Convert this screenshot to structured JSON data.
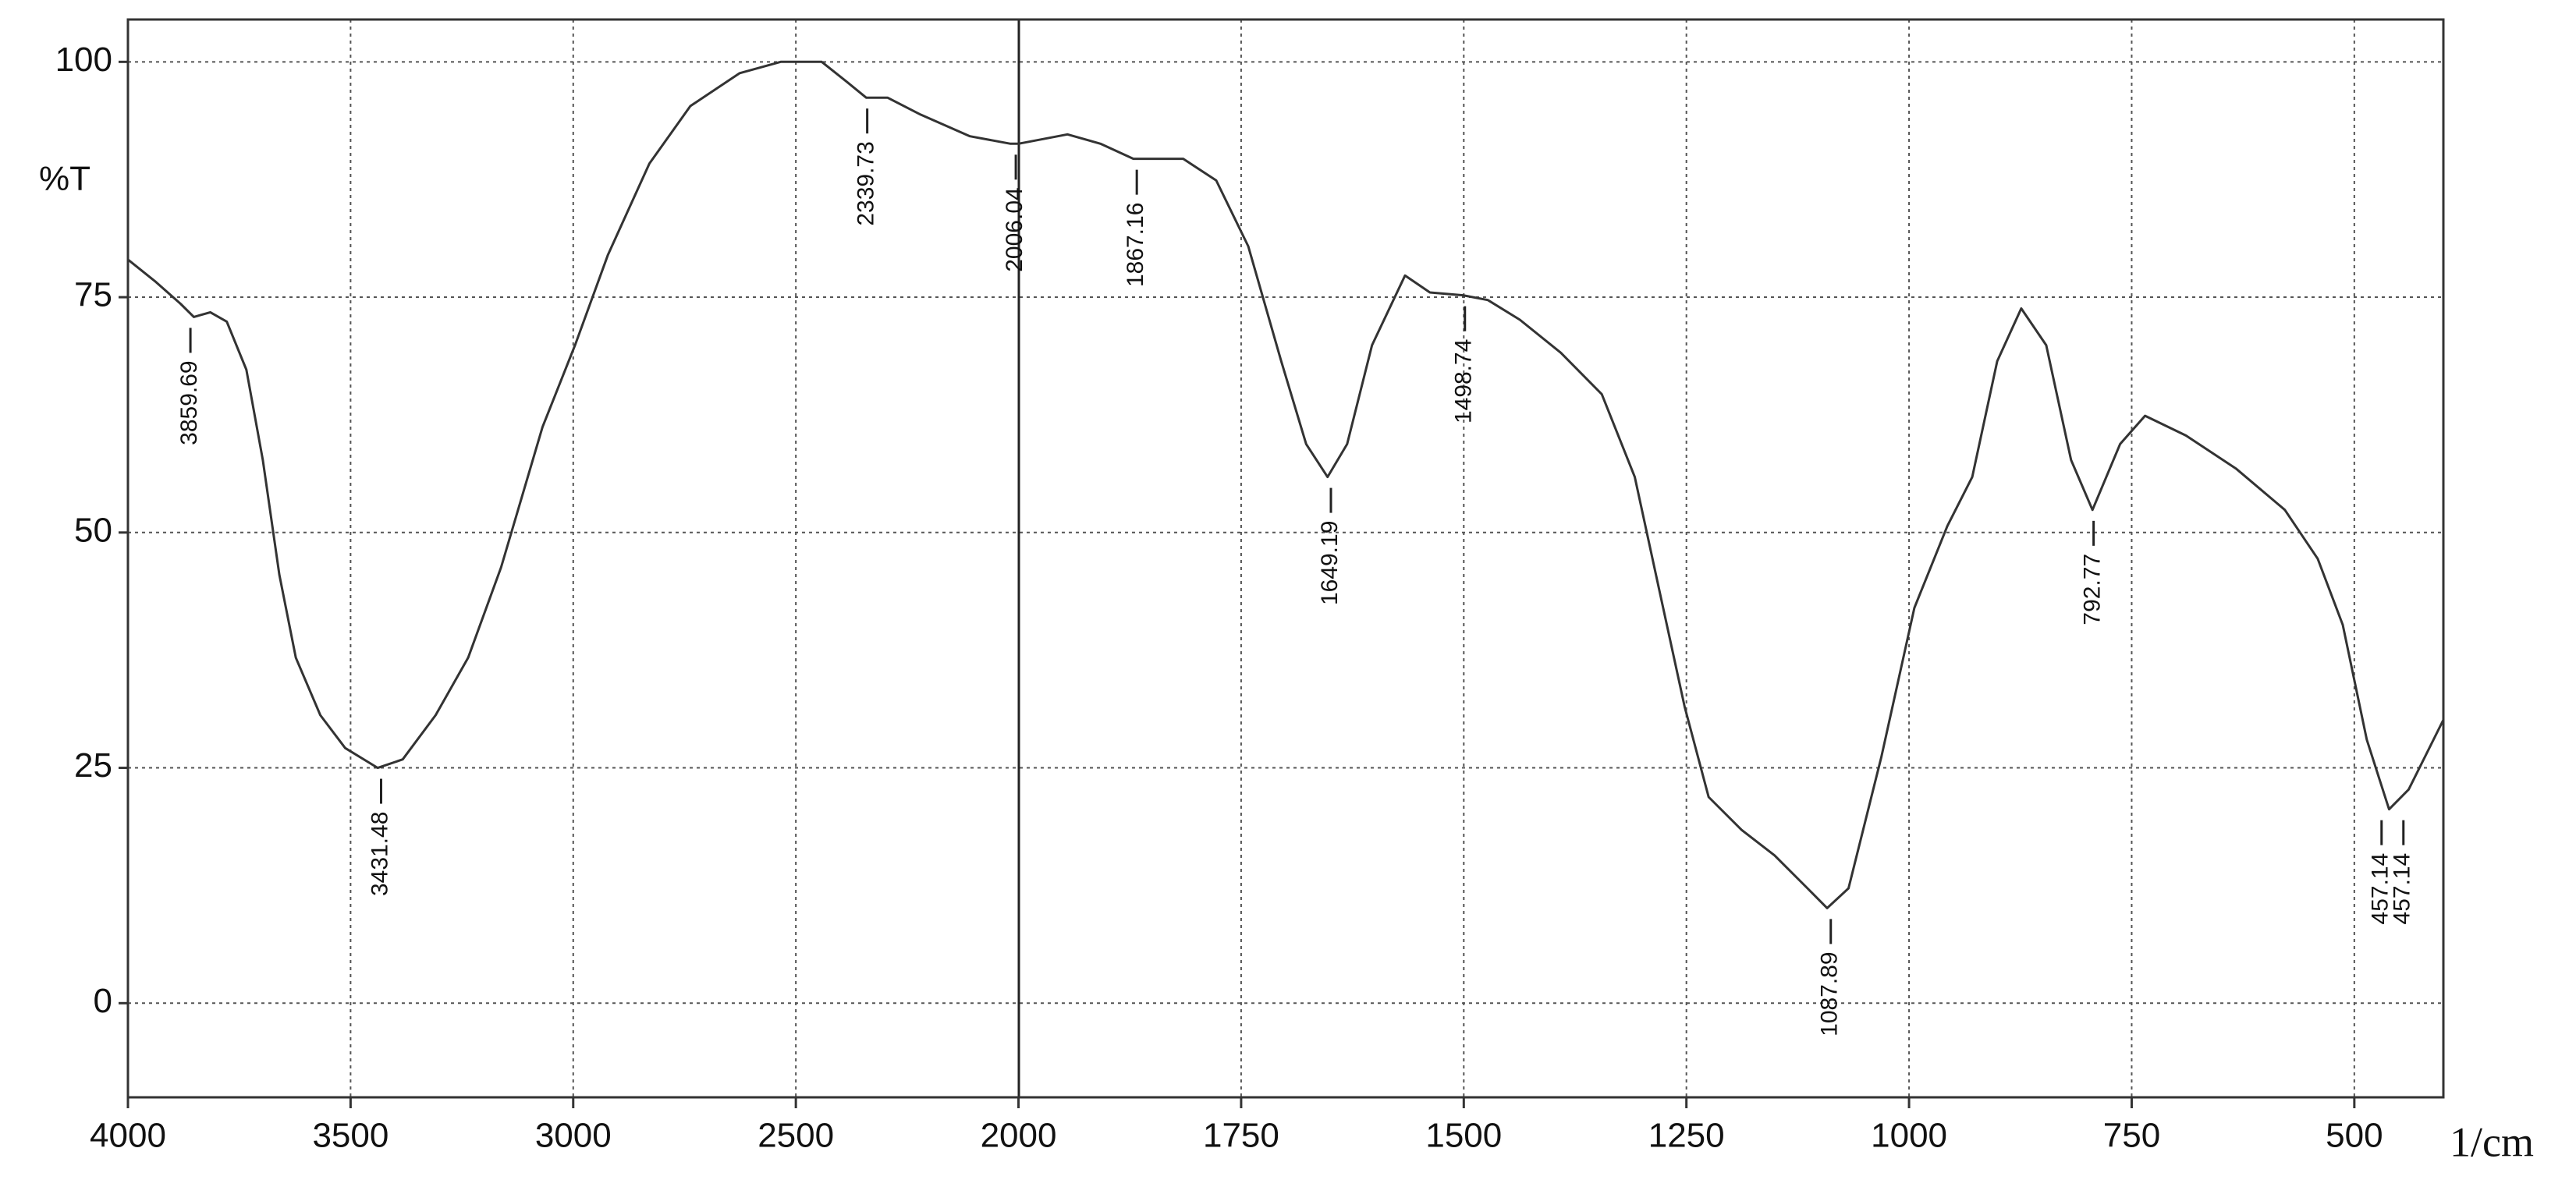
{
  "chart_data": {
    "type": "line",
    "y_label": "%T",
    "x_label": "1/cm",
    "xlim": [
      4000,
      400
    ],
    "ylim": [
      -10,
      104.5
    ],
    "xticks": [
      4000,
      3500,
      3000,
      2500,
      2000,
      1750,
      1500,
      1250,
      1000,
      750,
      500
    ],
    "yticks": [
      0,
      25,
      50,
      75,
      100
    ],
    "grid": true,
    "color": "#333333",
    "x": [
      4000,
      3937,
      3882,
      3852,
      3815,
      3778,
      3734,
      3697,
      3660,
      3623,
      3568,
      3512,
      3439,
      3383,
      3309,
      3236,
      3162,
      3069,
      2996,
      2922,
      2829,
      2737,
      2626,
      2534,
      2442,
      2386,
      2342,
      2294,
      2220,
      2109,
      2018,
      2000,
      1945,
      1908,
      1871,
      1815,
      1778,
      1742,
      1705,
      1677,
      1653,
      1631,
      1603,
      1566,
      1538,
      1501,
      1473,
      1437,
      1391,
      1345,
      1308,
      1280,
      1252,
      1225,
      1188,
      1151,
      1114,
      1092,
      1068,
      1031,
      994,
      957,
      929,
      901,
      874,
      846,
      818,
      794,
      763,
      735,
      689,
      633,
      578,
      541,
      513,
      486,
      461,
      439,
      400
    ],
    "values": [
      79.0,
      76.6,
      74.3,
      72.9,
      73.4,
      72.4,
      67.3,
      57.7,
      45.5,
      36.7,
      30.6,
      27.1,
      25.0,
      25.9,
      30.6,
      36.7,
      46.3,
      61.2,
      69.9,
      79.5,
      89.2,
      95.3,
      98.8,
      100,
      100,
      97.9,
      96.2,
      96.2,
      94.4,
      92.1,
      91.3,
      91.3,
      92.3,
      91.3,
      89.7,
      89.7,
      87.4,
      80.4,
      68.2,
      59.4,
      55.9,
      59.4,
      69.9,
      77.3,
      75.5,
      75.2,
      74.7,
      72.6,
      69.1,
      64.7,
      55.9,
      43.7,
      31.5,
      21.9,
      18.4,
      15.7,
      12.2,
      10.1,
      12.2,
      26.2,
      42.0,
      50.7,
      55.9,
      68.2,
      73.8,
      69.9,
      57.7,
      52.4,
      59.4,
      62.4,
      60.3,
      56.8,
      52.4,
      47.2,
      40.2,
      28.0,
      20.6,
      22.7,
      30.1
    ],
    "annotations": [
      {
        "x": 3859.69,
        "y": 72.9
      },
      {
        "x": 3431.48,
        "y": 25.0
      },
      {
        "x": 2339.73,
        "y": 96.2
      },
      {
        "x": 2006.04,
        "y": 91.3
      },
      {
        "x": 1867.16,
        "y": 89.7
      },
      {
        "x": 1649.19,
        "y": 55.9
      },
      {
        "x": 1498.74,
        "y": 75.2
      },
      {
        "x": 1087.89,
        "y": 10.1
      },
      {
        "x": 792.77,
        "y": 52.4
      },
      {
        "x": 457.14,
        "y": 20.6
      },
      {
        "x": 457.14,
        "y": 20.6
      }
    ]
  }
}
